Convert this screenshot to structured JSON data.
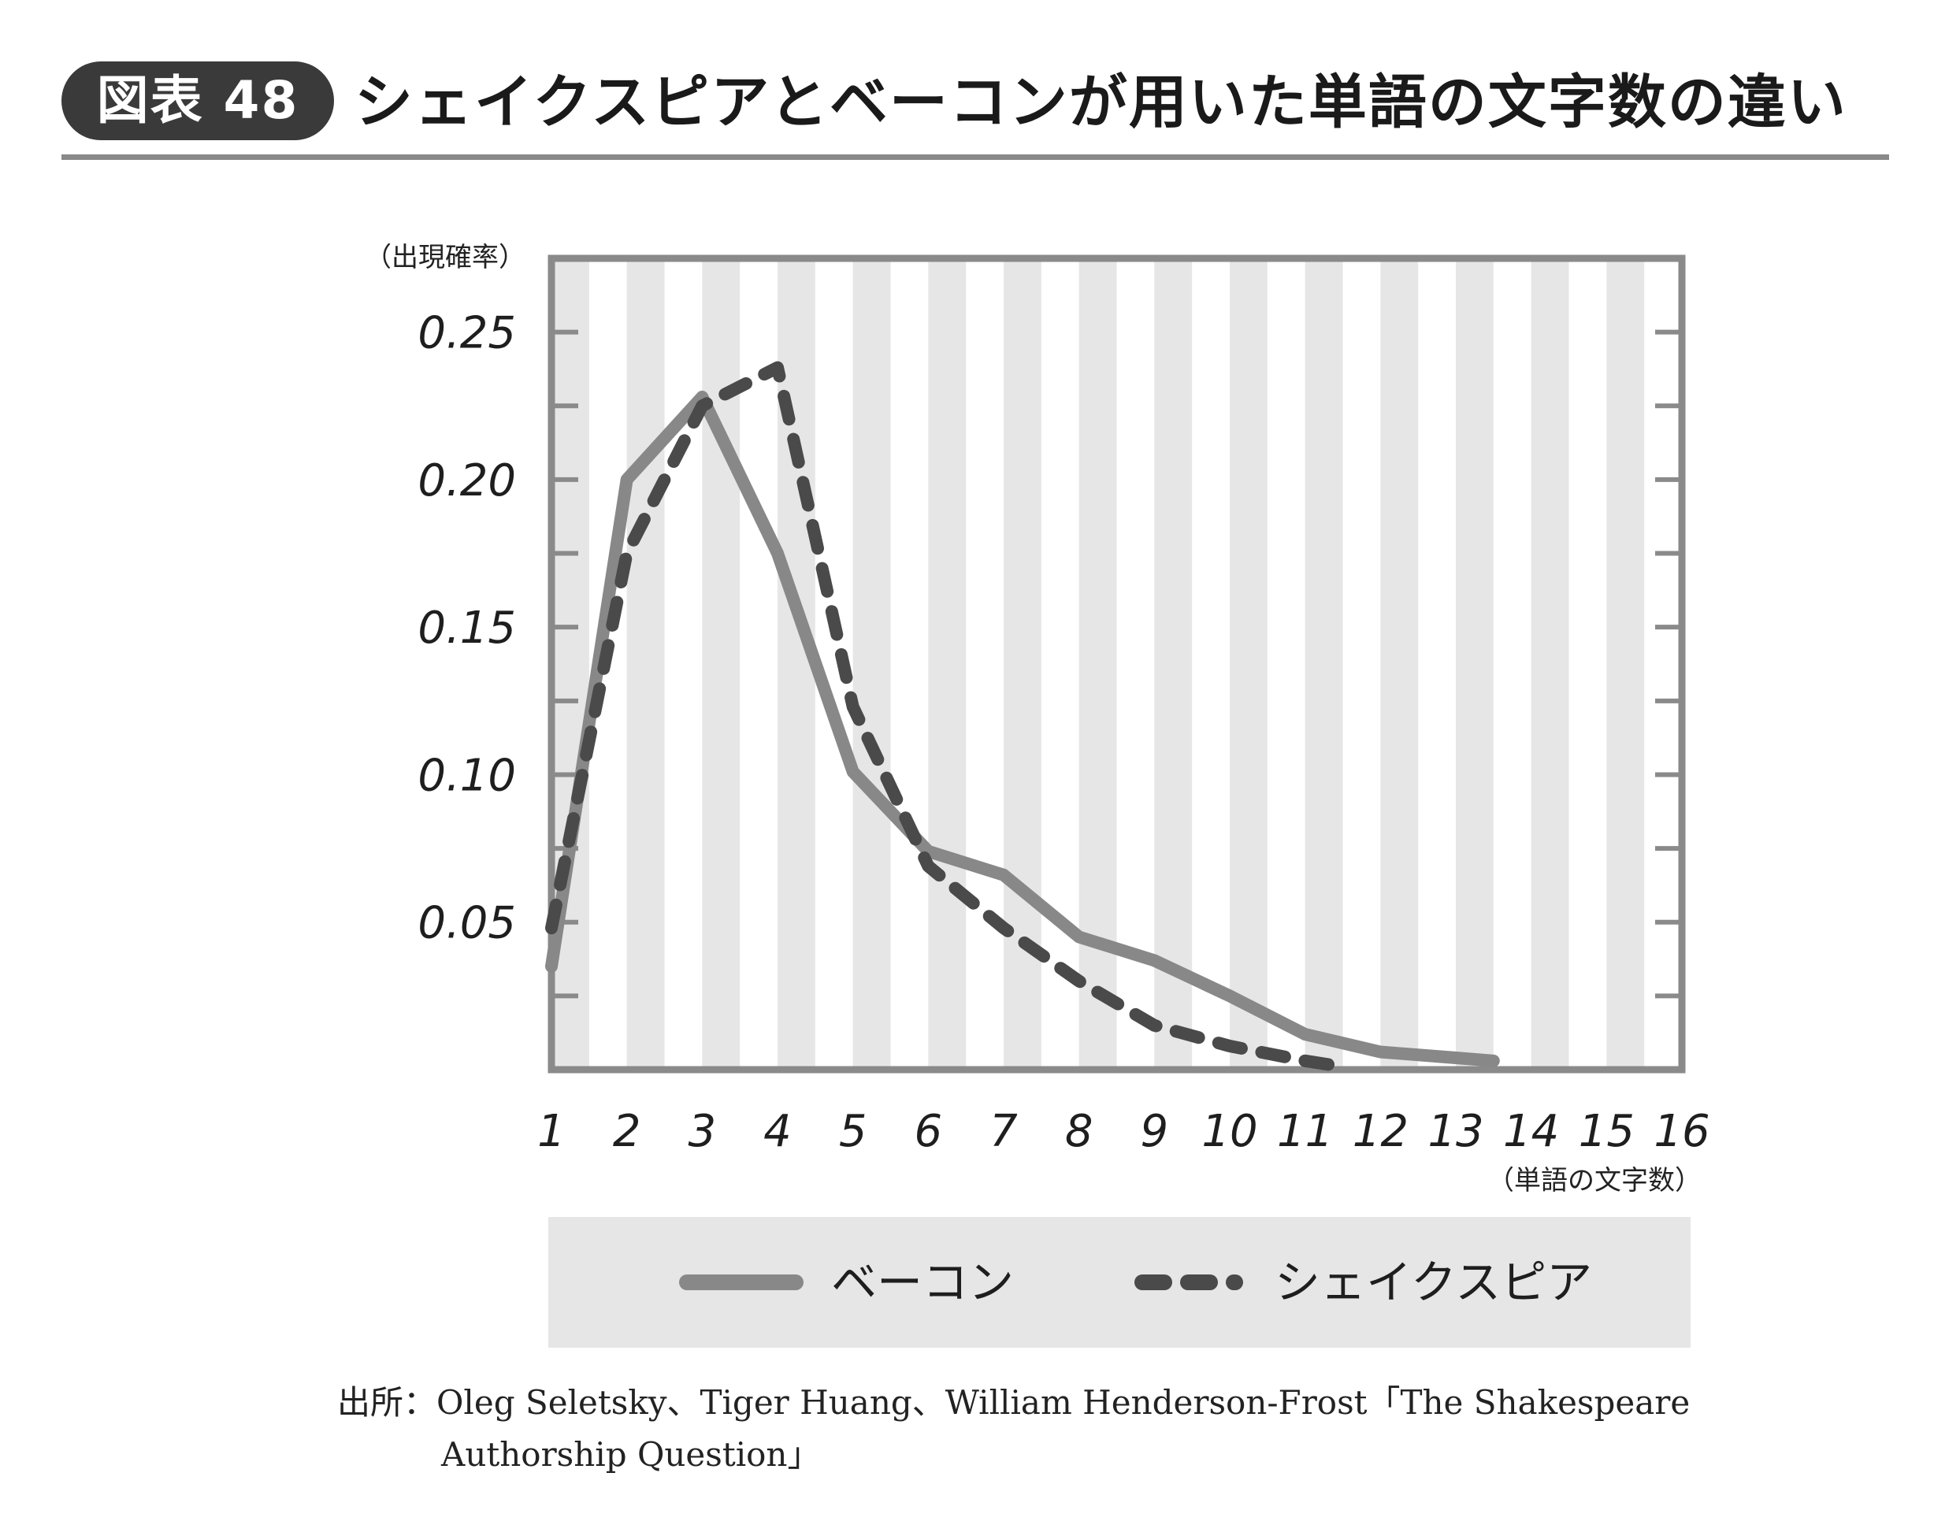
{
  "header": {
    "badge": "図表 48",
    "title": "シェイクスピアとベーコンが用いた単語の文字数の違い"
  },
  "chart_data": {
    "type": "line",
    "title": "シェイクスピアとベーコンが用いた単語の文字数の違い",
    "ylabel": "（出現確率）",
    "xlabel": "（単語の文字数）",
    "xlim": [
      1,
      16
    ],
    "ylim": [
      0,
      0.275
    ],
    "x_ticks": [
      1,
      2,
      3,
      4,
      5,
      6,
      7,
      8,
      9,
      10,
      11,
      12,
      13,
      14,
      15,
      16
    ],
    "y_ticks": [
      0.05,
      0.1,
      0.15,
      0.2,
      0.25
    ],
    "y_tick_labels": [
      "0.05",
      "0.10",
      "0.15",
      "0.20",
      "0.25"
    ],
    "grid": false,
    "background": "alternating vertical bands",
    "legend_position": "bottom",
    "series": [
      {
        "name": "ベーコン",
        "style": "solid",
        "color": "#888888",
        "x": [
          1,
          2,
          3,
          4,
          5,
          6,
          7,
          8,
          9,
          10,
          11,
          12,
          13,
          13.5
        ],
        "values": [
          0.035,
          0.2,
          0.228,
          0.175,
          0.101,
          0.074,
          0.066,
          0.045,
          0.037,
          0.025,
          0.012,
          0.006,
          0.004,
          0.003
        ]
      },
      {
        "name": "シェイクスピア",
        "style": "dashed",
        "color": "#4a4a4a",
        "x": [
          1,
          2,
          3,
          4,
          5,
          6,
          7,
          8,
          9,
          10,
          11,
          11.5
        ],
        "values": [
          0.048,
          0.175,
          0.225,
          0.238,
          0.123,
          0.069,
          0.048,
          0.03,
          0.015,
          0.008,
          0.003,
          0.001
        ]
      }
    ]
  },
  "source": {
    "line1": "出所：Oleg Seletsky、Tiger Huang、William Henderson-Frost「The Shakespeare",
    "line2": "Authorship Question」"
  }
}
